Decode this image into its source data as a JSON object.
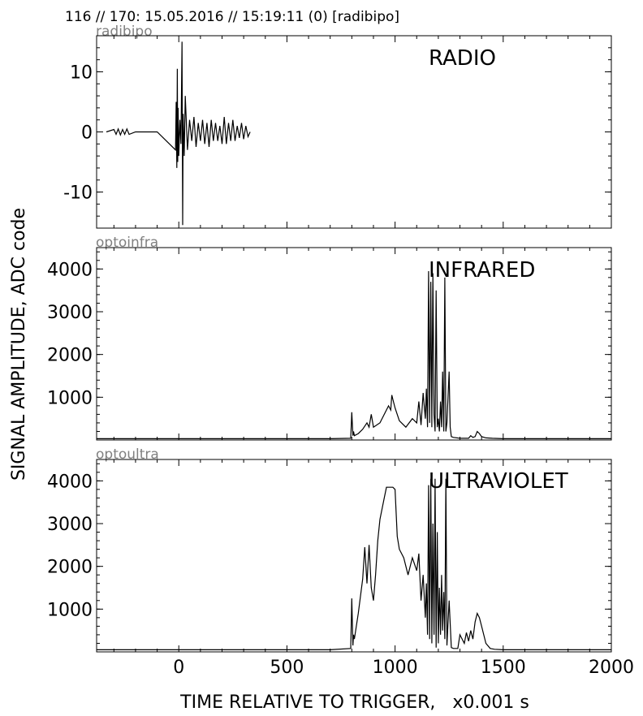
{
  "header": {
    "title": "116 // 170:   15.05.2016 // 15:19:11 (0)  [radibipo]"
  },
  "chart_data": {
    "type": "line",
    "xlabel": "TIME RELATIVE TO TRIGGER,   x0.001 s",
    "ylabel": "SIGNAL AMPLITUDE,  ADC code",
    "xlim": [
      -380,
      2000
    ],
    "xticks": [
      0,
      500,
      1000,
      1500,
      2000
    ],
    "xtick_labels": [
      "0",
      "500",
      "1000",
      "1500",
      "2000"
    ],
    "grid": false,
    "panels": [
      {
        "channel": "radibipo",
        "label": "RADIO",
        "ylim": [
          -16,
          16
        ],
        "yticks": [
          10,
          0,
          -10
        ],
        "ytick_labels": [
          "10",
          "0",
          "-10"
        ],
        "x": [
          -335,
          -300,
          -290,
          -280,
          -270,
          -260,
          -250,
          -240,
          -230,
          -200,
          -100,
          -15,
          -12,
          -9,
          -7,
          -5,
          -3,
          0,
          5,
          10,
          15,
          18,
          20,
          25,
          30,
          40,
          50,
          60,
          70,
          80,
          90,
          100,
          110,
          120,
          130,
          140,
          150,
          160,
          170,
          180,
          190,
          200,
          210,
          220,
          230,
          240,
          250,
          260,
          270,
          280,
          290,
          300,
          310,
          320,
          330
        ],
        "y": [
          0,
          0.4,
          -0.4,
          0.5,
          -0.5,
          0.4,
          -0.4,
          0.5,
          -0.4,
          0,
          0,
          -3,
          5,
          -6,
          10.5,
          -5,
          4,
          -4,
          2,
          -2,
          15,
          -15.5,
          3,
          -4,
          6,
          -3,
          2,
          -1.5,
          2.5,
          -2.5,
          1.5,
          -1.5,
          2,
          -2,
          1.5,
          -2.5,
          2,
          -1.5,
          1.5,
          -1.5,
          1,
          -2,
          2.5,
          -2,
          1.5,
          -1.5,
          2,
          -1.5,
          1,
          -1,
          1.5,
          -1.2,
          1,
          -0.8,
          0
        ]
      },
      {
        "channel": "optoinfra",
        "label": "INFRARED",
        "ylim": [
          0,
          4500
        ],
        "yticks": [
          1000,
          2000,
          3000,
          4000
        ],
        "ytick_labels": [
          "1000",
          "2000",
          "3000",
          "4000"
        ],
        "x": [
          -380,
          700,
          795,
          800,
          805,
          808,
          812,
          830,
          850,
          870,
          880,
          890,
          900,
          930,
          950,
          970,
          980,
          985,
          990,
          1000,
          1020,
          1050,
          1080,
          1100,
          1110,
          1120,
          1130,
          1140,
          1145,
          1150,
          1155,
          1160,
          1165,
          1170,
          1175,
          1180,
          1185,
          1190,
          1195,
          1200,
          1205,
          1210,
          1215,
          1220,
          1225,
          1230,
          1235,
          1240,
          1250,
          1255,
          1260,
          1270,
          1300,
          1340,
          1350,
          1360,
          1370,
          1380,
          1390,
          1400,
          1420,
          1450,
          1500,
          2000
        ],
        "y": [
          30,
          30,
          40,
          650,
          100,
          200,
          100,
          150,
          250,
          400,
          300,
          600,
          300,
          400,
          600,
          800,
          700,
          1050,
          950,
          750,
          450,
          300,
          500,
          400,
          900,
          350,
          1100,
          500,
          1200,
          300,
          3950,
          400,
          3700,
          300,
          3900,
          600,
          200,
          3500,
          300,
          500,
          200,
          900,
          300,
          1600,
          200,
          3800,
          200,
          400,
          1600,
          300,
          80,
          60,
          40,
          40,
          100,
          60,
          80,
          200,
          150,
          80,
          50,
          40,
          30,
          30
        ]
      },
      {
        "channel": "optoultra",
        "label": "ULTRAVIOLET",
        "ylim": [
          0,
          4500
        ],
        "yticks": [
          1000,
          2000,
          3000,
          4000
        ],
        "ytick_labels": [
          "1000",
          "2000",
          "3000",
          "4000"
        ],
        "x": [
          -380,
          700,
          795,
          800,
          805,
          808,
          812,
          830,
          850,
          860,
          870,
          880,
          890,
          900,
          910,
          920,
          930,
          950,
          960,
          970,
          980,
          990,
          1000,
          1010,
          1020,
          1040,
          1060,
          1080,
          1100,
          1110,
          1120,
          1130,
          1140,
          1145,
          1150,
          1155,
          1160,
          1165,
          1170,
          1175,
          1180,
          1185,
          1190,
          1195,
          1200,
          1205,
          1210,
          1215,
          1220,
          1225,
          1230,
          1235,
          1240,
          1250,
          1260,
          1270,
          1290,
          1300,
          1320,
          1330,
          1340,
          1350,
          1360,
          1370,
          1380,
          1390,
          1400,
          1420,
          1440,
          1460,
          1500,
          2000
        ],
        "y": [
          50,
          50,
          80,
          1250,
          150,
          400,
          300,
          900,
          1700,
          2450,
          1600,
          2500,
          1500,
          1200,
          1800,
          2600,
          3100,
          3600,
          3850,
          3850,
          3850,
          3850,
          3800,
          2700,
          2400,
          2200,
          1800,
          2200,
          1900,
          2300,
          1200,
          1800,
          800,
          1600,
          400,
          3900,
          300,
          4050,
          200,
          3000,
          400,
          4050,
          100,
          2800,
          200,
          1500,
          400,
          1800,
          500,
          1400,
          300,
          4050,
          150,
          1200,
          100,
          80,
          80,
          400,
          200,
          450,
          250,
          500,
          300,
          700,
          900,
          800,
          600,
          200,
          80,
          60,
          50,
          50
        ]
      }
    ]
  }
}
